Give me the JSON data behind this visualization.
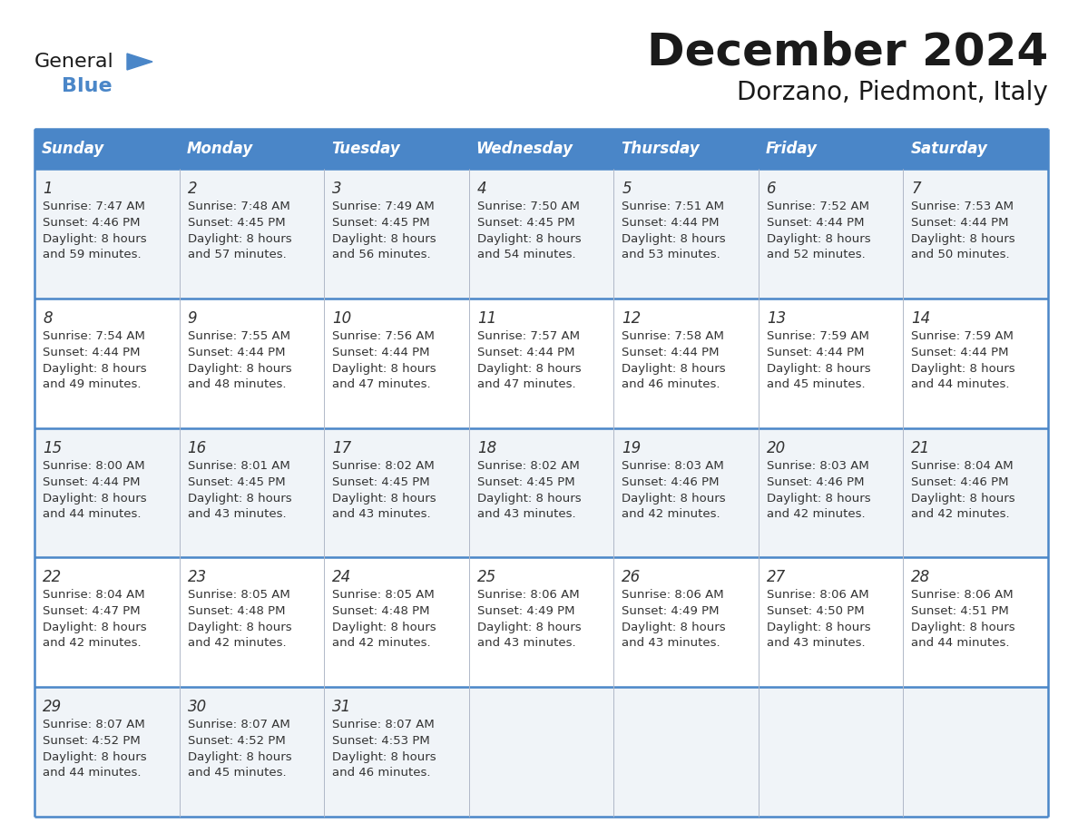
{
  "title": "December 2024",
  "subtitle": "Dorzano, Piedmont, Italy",
  "header_bg": "#4a86c8",
  "header_text": "#ffffff",
  "row_bg_odd": "#f0f4f8",
  "row_bg_even": "#ffffff",
  "border_color": "#4a86c8",
  "text_color": "#333333",
  "day_names": [
    "Sunday",
    "Monday",
    "Tuesday",
    "Wednesday",
    "Thursday",
    "Friday",
    "Saturday"
  ],
  "days": [
    {
      "day": 1,
      "col": 0,
      "row": 0,
      "sunrise": "7:47 AM",
      "sunset": "4:46 PM",
      "daylight": "8 hours",
      "daylight2": "and 59 minutes."
    },
    {
      "day": 2,
      "col": 1,
      "row": 0,
      "sunrise": "7:48 AM",
      "sunset": "4:45 PM",
      "daylight": "8 hours",
      "daylight2": "and 57 minutes."
    },
    {
      "day": 3,
      "col": 2,
      "row": 0,
      "sunrise": "7:49 AM",
      "sunset": "4:45 PM",
      "daylight": "8 hours",
      "daylight2": "and 56 minutes."
    },
    {
      "day": 4,
      "col": 3,
      "row": 0,
      "sunrise": "7:50 AM",
      "sunset": "4:45 PM",
      "daylight": "8 hours",
      "daylight2": "and 54 minutes."
    },
    {
      "day": 5,
      "col": 4,
      "row": 0,
      "sunrise": "7:51 AM",
      "sunset": "4:44 PM",
      "daylight": "8 hours",
      "daylight2": "and 53 minutes."
    },
    {
      "day": 6,
      "col": 5,
      "row": 0,
      "sunrise": "7:52 AM",
      "sunset": "4:44 PM",
      "daylight": "8 hours",
      "daylight2": "and 52 minutes."
    },
    {
      "day": 7,
      "col": 6,
      "row": 0,
      "sunrise": "7:53 AM",
      "sunset": "4:44 PM",
      "daylight": "8 hours",
      "daylight2": "and 50 minutes."
    },
    {
      "day": 8,
      "col": 0,
      "row": 1,
      "sunrise": "7:54 AM",
      "sunset": "4:44 PM",
      "daylight": "8 hours",
      "daylight2": "and 49 minutes."
    },
    {
      "day": 9,
      "col": 1,
      "row": 1,
      "sunrise": "7:55 AM",
      "sunset": "4:44 PM",
      "daylight": "8 hours",
      "daylight2": "and 48 minutes."
    },
    {
      "day": 10,
      "col": 2,
      "row": 1,
      "sunrise": "7:56 AM",
      "sunset": "4:44 PM",
      "daylight": "8 hours",
      "daylight2": "and 47 minutes."
    },
    {
      "day": 11,
      "col": 3,
      "row": 1,
      "sunrise": "7:57 AM",
      "sunset": "4:44 PM",
      "daylight": "8 hours",
      "daylight2": "and 47 minutes."
    },
    {
      "day": 12,
      "col": 4,
      "row": 1,
      "sunrise": "7:58 AM",
      "sunset": "4:44 PM",
      "daylight": "8 hours",
      "daylight2": "and 46 minutes."
    },
    {
      "day": 13,
      "col": 5,
      "row": 1,
      "sunrise": "7:59 AM",
      "sunset": "4:44 PM",
      "daylight": "8 hours",
      "daylight2": "and 45 minutes."
    },
    {
      "day": 14,
      "col": 6,
      "row": 1,
      "sunrise": "7:59 AM",
      "sunset": "4:44 PM",
      "daylight": "8 hours",
      "daylight2": "and 44 minutes."
    },
    {
      "day": 15,
      "col": 0,
      "row": 2,
      "sunrise": "8:00 AM",
      "sunset": "4:44 PM",
      "daylight": "8 hours",
      "daylight2": "and 44 minutes."
    },
    {
      "day": 16,
      "col": 1,
      "row": 2,
      "sunrise": "8:01 AM",
      "sunset": "4:45 PM",
      "daylight": "8 hours",
      "daylight2": "and 43 minutes."
    },
    {
      "day": 17,
      "col": 2,
      "row": 2,
      "sunrise": "8:02 AM",
      "sunset": "4:45 PM",
      "daylight": "8 hours",
      "daylight2": "and 43 minutes."
    },
    {
      "day": 18,
      "col": 3,
      "row": 2,
      "sunrise": "8:02 AM",
      "sunset": "4:45 PM",
      "daylight": "8 hours",
      "daylight2": "and 43 minutes."
    },
    {
      "day": 19,
      "col": 4,
      "row": 2,
      "sunrise": "8:03 AM",
      "sunset": "4:46 PM",
      "daylight": "8 hours",
      "daylight2": "and 42 minutes."
    },
    {
      "day": 20,
      "col": 5,
      "row": 2,
      "sunrise": "8:03 AM",
      "sunset": "4:46 PM",
      "daylight": "8 hours",
      "daylight2": "and 42 minutes."
    },
    {
      "day": 21,
      "col": 6,
      "row": 2,
      "sunrise": "8:04 AM",
      "sunset": "4:46 PM",
      "daylight": "8 hours",
      "daylight2": "and 42 minutes."
    },
    {
      "day": 22,
      "col": 0,
      "row": 3,
      "sunrise": "8:04 AM",
      "sunset": "4:47 PM",
      "daylight": "8 hours",
      "daylight2": "and 42 minutes."
    },
    {
      "day": 23,
      "col": 1,
      "row": 3,
      "sunrise": "8:05 AM",
      "sunset": "4:48 PM",
      "daylight": "8 hours",
      "daylight2": "and 42 minutes."
    },
    {
      "day": 24,
      "col": 2,
      "row": 3,
      "sunrise": "8:05 AM",
      "sunset": "4:48 PM",
      "daylight": "8 hours",
      "daylight2": "and 42 minutes."
    },
    {
      "day": 25,
      "col": 3,
      "row": 3,
      "sunrise": "8:06 AM",
      "sunset": "4:49 PM",
      "daylight": "8 hours",
      "daylight2": "and 43 minutes."
    },
    {
      "day": 26,
      "col": 4,
      "row": 3,
      "sunrise": "8:06 AM",
      "sunset": "4:49 PM",
      "daylight": "8 hours",
      "daylight2": "and 43 minutes."
    },
    {
      "day": 27,
      "col": 5,
      "row": 3,
      "sunrise": "8:06 AM",
      "sunset": "4:50 PM",
      "daylight": "8 hours",
      "daylight2": "and 43 minutes."
    },
    {
      "day": 28,
      "col": 6,
      "row": 3,
      "sunrise": "8:06 AM",
      "sunset": "4:51 PM",
      "daylight": "8 hours",
      "daylight2": "and 44 minutes."
    },
    {
      "day": 29,
      "col": 0,
      "row": 4,
      "sunrise": "8:07 AM",
      "sunset": "4:52 PM",
      "daylight": "8 hours",
      "daylight2": "and 44 minutes."
    },
    {
      "day": 30,
      "col": 1,
      "row": 4,
      "sunrise": "8:07 AM",
      "sunset": "4:52 PM",
      "daylight": "8 hours",
      "daylight2": "and 45 minutes."
    },
    {
      "day": 31,
      "col": 2,
      "row": 4,
      "sunrise": "8:07 AM",
      "sunset": "4:53 PM",
      "daylight": "8 hours",
      "daylight2": "and 46 minutes."
    }
  ]
}
